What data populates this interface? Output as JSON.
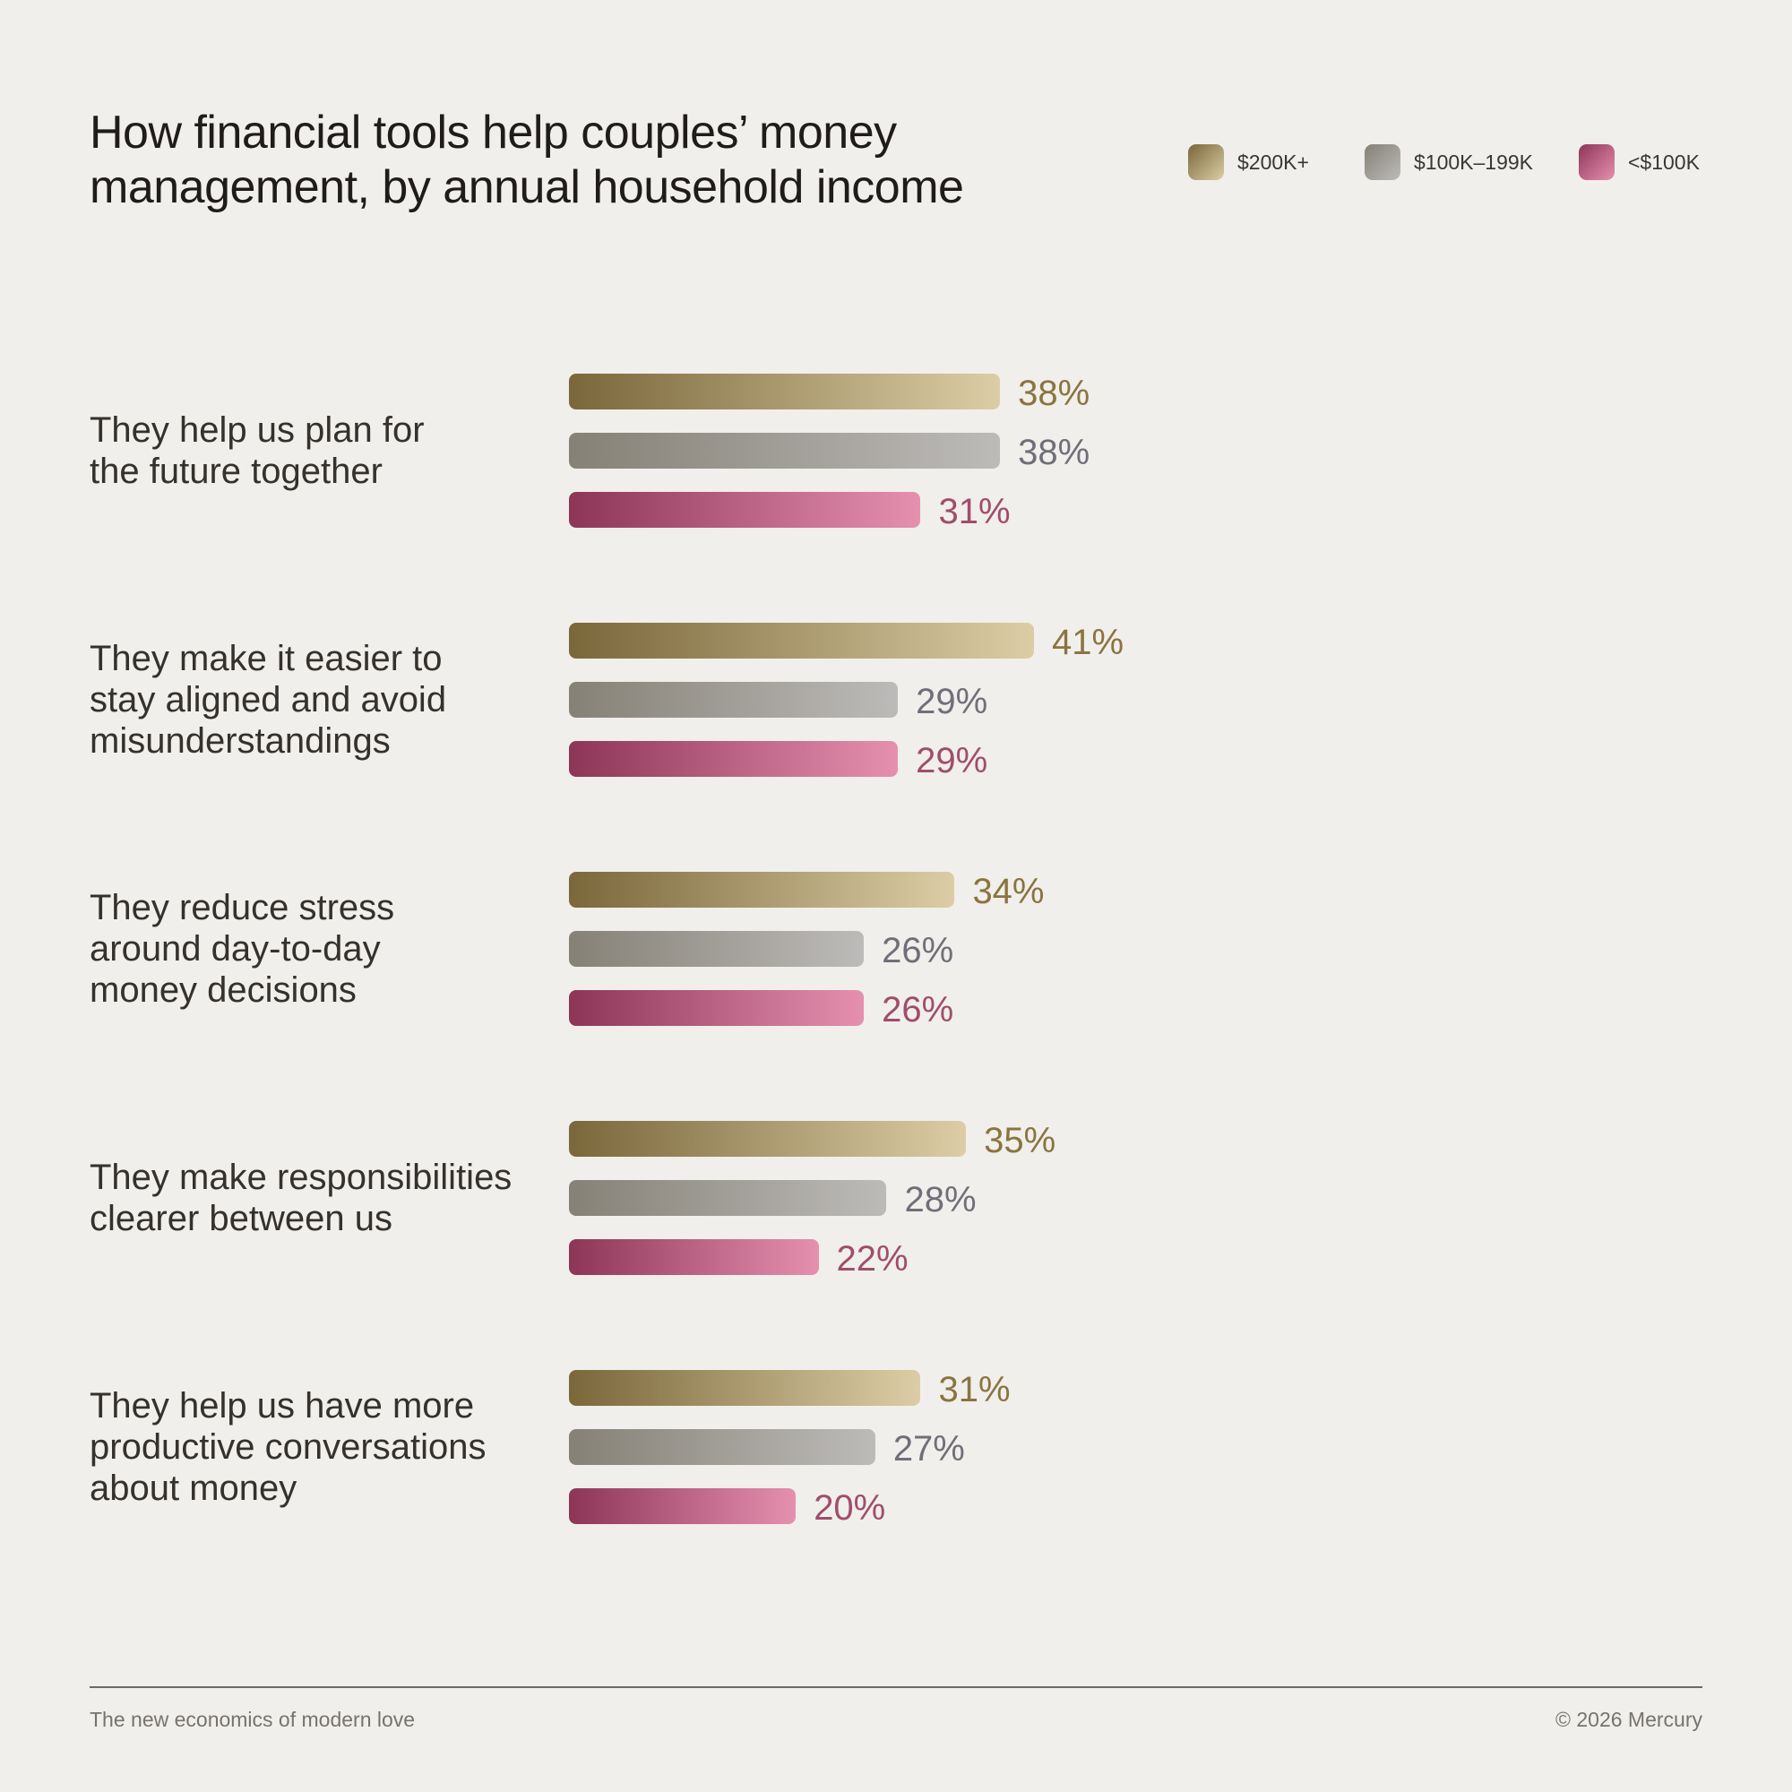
{
  "chart_data": {
    "type": "hbar",
    "title": "How financial tools help couples’ money\nmanagement, by annual household income",
    "categories": [
      "They help us plan for\nthe future together",
      "They make it easier to\nstay aligned and avoid\nmisunderstandings",
      "They reduce stress\naround day-to-day\nmoney decisions",
      "They make responsibilities\nclearer between us",
      "They help us have more\nproductive conversations\nabout money"
    ],
    "series": [
      {
        "name": "$200K+",
        "color": "#8a7440",
        "gradient": [
          "#7a673a",
          "#dccda6"
        ],
        "values": [
          38,
          41,
          34,
          35,
          31
        ],
        "value_labels": [
          "38%",
          "41%",
          "34%",
          "35%",
          "31%"
        ]
      },
      {
        "name": "$100K–199K",
        "color": "#706f79",
        "gradient": [
          "#858176",
          "#bdbbb9"
        ],
        "values": [
          38,
          29,
          26,
          28,
          27
        ],
        "value_labels": [
          "38%",
          "29%",
          "26%",
          "28%",
          "27%"
        ]
      },
      {
        "name": "<$100K",
        "color": "#a04d6d",
        "gradient": [
          "#8d3557",
          "#e690b0"
        ],
        "values": [
          31,
          29,
          26,
          22,
          20
        ],
        "value_labels": [
          "31%",
          "29%",
          "26%",
          "22%",
          "20%"
        ]
      }
    ],
    "footer_left": "The new economics of modern love",
    "footer_right": "© 2026 Mercury"
  }
}
